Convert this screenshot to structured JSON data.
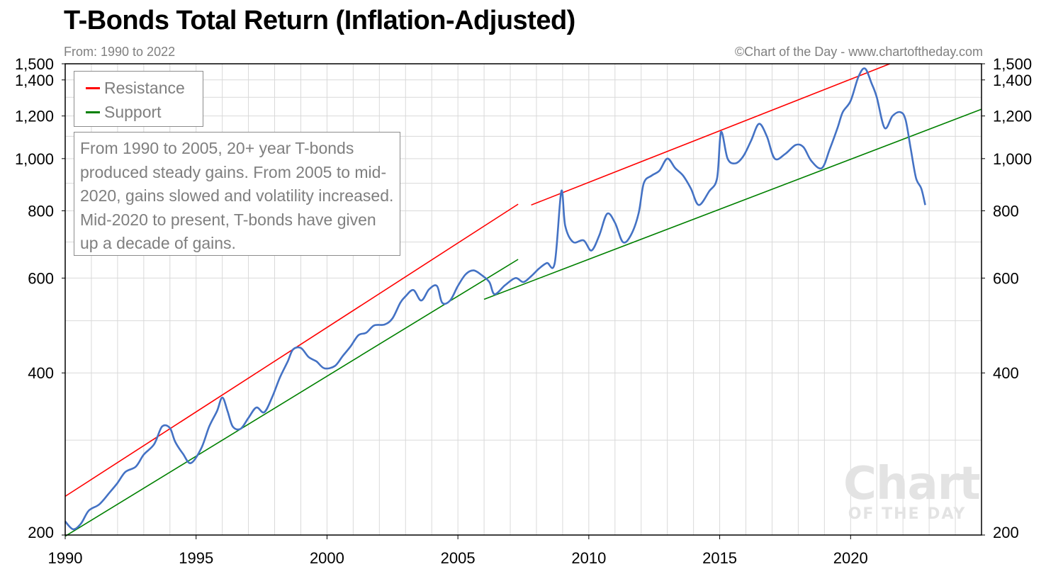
{
  "title": "T-Bonds Total Return (Inflation-Adjusted)",
  "subtitle": "From: 1990 to 2022",
  "credit": "©Chart of the Day - www.chartoftheday.com",
  "legend": {
    "resistance": "Resistance",
    "support": "Support"
  },
  "note": "From 1990 to 2005, 20+ year T-bonds produced steady gains. From 2005 to mid-2020, gains slowed and volatility increased. Mid-2020 to present, T-bonds have given up a decade of gains.",
  "watermark": {
    "big": "Chart",
    "small": "OF THE DAY"
  },
  "colors": {
    "series": "#4472c4",
    "resistance": "#ff0000",
    "support": "#008000",
    "grid": "#d9d9d9"
  },
  "chart_data": {
    "type": "line",
    "title": "T-Bonds Total Return (Inflation-Adjusted)",
    "xlabel": "",
    "ylabel": "",
    "y_scale": "log",
    "xlim": [
      1990,
      2025
    ],
    "ylim": [
      200,
      1500
    ],
    "x_ticks": [
      1990,
      1995,
      2000,
      2005,
      2010,
      2015,
      2020
    ],
    "y_ticks": [
      200,
      400,
      600,
      800,
      1000,
      1200,
      1400,
      1500
    ],
    "y_tick_labels": [
      "200",
      "400",
      "600",
      "800",
      "1,000",
      "1,200",
      "1,400",
      "1,500"
    ],
    "grid": true,
    "series": [
      {
        "name": "",
        "points": [
          [
            1990.0,
            212
          ],
          [
            1990.3,
            205
          ],
          [
            1990.6,
            210
          ],
          [
            1990.9,
            222
          ],
          [
            1991.3,
            228
          ],
          [
            1991.7,
            240
          ],
          [
            1992.0,
            250
          ],
          [
            1992.3,
            262
          ],
          [
            1992.7,
            268
          ],
          [
            1993.0,
            282
          ],
          [
            1993.4,
            295
          ],
          [
            1993.7,
            318
          ],
          [
            1994.0,
            316
          ],
          [
            1994.2,
            298
          ],
          [
            1994.5,
            283
          ],
          [
            1994.8,
            272
          ],
          [
            1995.2,
            290
          ],
          [
            1995.5,
            318
          ],
          [
            1995.8,
            340
          ],
          [
            1996.0,
            360
          ],
          [
            1996.2,
            340
          ],
          [
            1996.4,
            318
          ],
          [
            1996.7,
            315
          ],
          [
            1997.0,
            330
          ],
          [
            1997.3,
            345
          ],
          [
            1997.6,
            338
          ],
          [
            1997.9,
            360
          ],
          [
            1998.2,
            392
          ],
          [
            1998.5,
            420
          ],
          [
            1998.7,
            442
          ],
          [
            1999.0,
            445
          ],
          [
            1999.3,
            428
          ],
          [
            1999.6,
            420
          ],
          [
            1999.9,
            408
          ],
          [
            2000.3,
            412
          ],
          [
            2000.6,
            430
          ],
          [
            2000.9,
            448
          ],
          [
            2001.2,
            470
          ],
          [
            2001.5,
            475
          ],
          [
            2001.8,
            490
          ],
          [
            2002.2,
            492
          ],
          [
            2002.5,
            505
          ],
          [
            2002.8,
            540
          ],
          [
            2003.0,
            555
          ],
          [
            2003.3,
            570
          ],
          [
            2003.6,
            545
          ],
          [
            2003.9,
            572
          ],
          [
            2004.2,
            580
          ],
          [
            2004.4,
            540
          ],
          [
            2004.7,
            545
          ],
          [
            2005.0,
            580
          ],
          [
            2005.3,
            610
          ],
          [
            2005.6,
            620
          ],
          [
            2005.9,
            608
          ],
          [
            2006.2,
            590
          ],
          [
            2006.4,
            560
          ],
          [
            2006.8,
            582
          ],
          [
            2007.2,
            600
          ],
          [
            2007.5,
            590
          ],
          [
            2007.8,
            605
          ],
          [
            2008.1,
            625
          ],
          [
            2008.4,
            640
          ],
          [
            2008.7,
            640
          ],
          [
            2008.95,
            870
          ],
          [
            2009.1,
            750
          ],
          [
            2009.4,
            700
          ],
          [
            2009.8,
            705
          ],
          [
            2010.1,
            675
          ],
          [
            2010.4,
            720
          ],
          [
            2010.7,
            790
          ],
          [
            2011.0,
            760
          ],
          [
            2011.3,
            700
          ],
          [
            2011.6,
            720
          ],
          [
            2011.9,
            790
          ],
          [
            2012.1,
            900
          ],
          [
            2012.4,
            930
          ],
          [
            2012.7,
            950
          ],
          [
            2013.0,
            1000
          ],
          [
            2013.3,
            960
          ],
          [
            2013.6,
            930
          ],
          [
            2013.9,
            880
          ],
          [
            2014.2,
            820
          ],
          [
            2014.6,
            870
          ],
          [
            2014.9,
            920
          ],
          [
            2015.05,
            1120
          ],
          [
            2015.3,
            1000
          ],
          [
            2015.6,
            980
          ],
          [
            2015.9,
            1010
          ],
          [
            2016.2,
            1080
          ],
          [
            2016.5,
            1160
          ],
          [
            2016.8,
            1100
          ],
          [
            2017.1,
            1000
          ],
          [
            2017.5,
            1020
          ],
          [
            2017.9,
            1060
          ],
          [
            2018.2,
            1050
          ],
          [
            2018.5,
            990
          ],
          [
            2018.9,
            960
          ],
          [
            2019.2,
            1040
          ],
          [
            2019.5,
            1140
          ],
          [
            2019.7,
            1220
          ],
          [
            2020.0,
            1280
          ],
          [
            2020.3,
            1420
          ],
          [
            2020.55,
            1470
          ],
          [
            2020.8,
            1380
          ],
          [
            2021.0,
            1300
          ],
          [
            2021.3,
            1140
          ],
          [
            2021.6,
            1200
          ],
          [
            2021.9,
            1220
          ],
          [
            2022.1,
            1180
          ],
          [
            2022.3,
            1040
          ],
          [
            2022.5,
            920
          ],
          [
            2022.7,
            880
          ],
          [
            2022.85,
            820
          ]
        ]
      },
      {
        "name": "Resistance",
        "segments": [
          [
            [
              1990.0,
              236
            ],
            [
              2007.3,
              823
            ]
          ],
          [
            [
              2007.8,
              820
            ],
            [
              2021.5,
              1500
            ]
          ]
        ]
      },
      {
        "name": "Support",
        "segments": [
          [
            [
              1990.0,
              199
            ],
            [
              2007.3,
              650
            ]
          ],
          [
            [
              2006.0,
              548
            ],
            [
              2025.0,
              1235
            ]
          ]
        ]
      }
    ]
  }
}
